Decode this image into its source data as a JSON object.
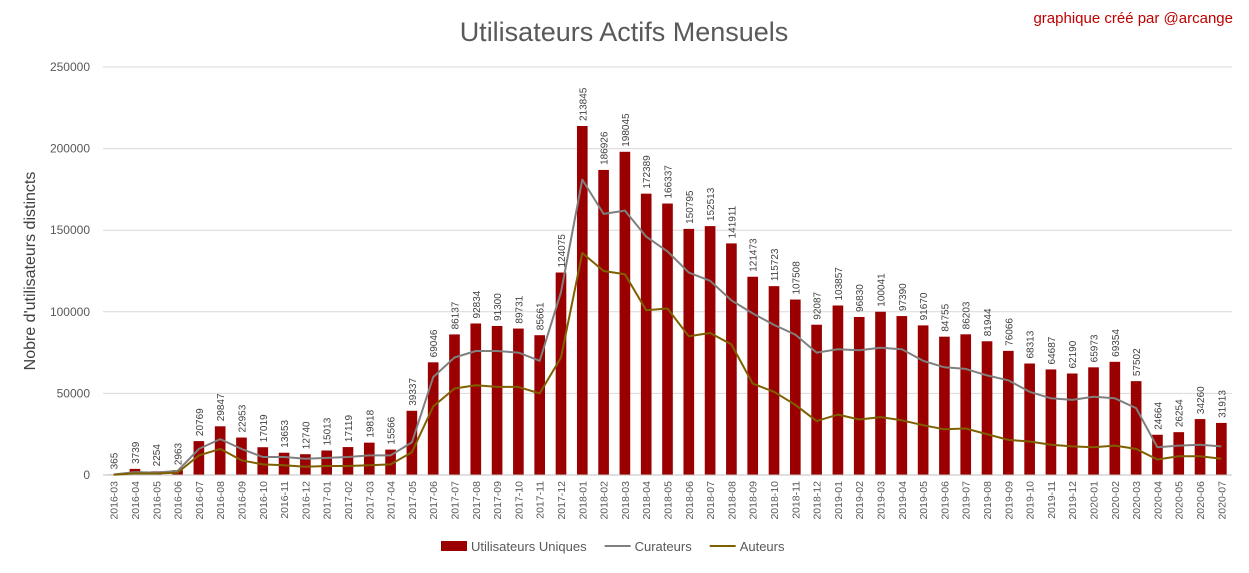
{
  "chart_data": {
    "type": "bar",
    "title": "Utilisateurs Actifs Mensuels",
    "credit": "graphique créé par  @arcange",
    "xlabel": "",
    "ylabel": "Nobre d'utilisateurs distincts",
    "ylim": [
      0,
      250000
    ],
    "yticks": [
      "0",
      "50000",
      "100000",
      "150000",
      "200000",
      "250000"
    ],
    "grid": true,
    "legend_position": "bottom",
    "categories": [
      "2016-03",
      "2016-04",
      "2016-05",
      "2016-06",
      "2016-07",
      "2016-08",
      "2016-09",
      "2016-10",
      "2016-11",
      "2016-12",
      "2017-01",
      "2017-02",
      "2017-03",
      "2017-04",
      "2017-05",
      "2017-06",
      "2017-07",
      "2017-08",
      "2017-09",
      "2017-10",
      "2017-11",
      "2017-12",
      "2018-01",
      "2018-02",
      "2018-03",
      "2018-04",
      "2018-05",
      "2018-06",
      "2018-07",
      "2018-08",
      "2018-09",
      "2018-10",
      "2018-11",
      "2018-12",
      "2019-01",
      "2019-02",
      "2019-03",
      "2019-04",
      "2019-05",
      "2019-06",
      "2019-07",
      "2019-08",
      "2019-09",
      "2019-10",
      "2019-11",
      "2019-12",
      "2020-01",
      "2020-02",
      "2020-03",
      "2020-04",
      "2020-05",
      "2020-06",
      "2020-07"
    ],
    "series": [
      {
        "name": "Utilisateurs Uniques",
        "kind": "bar",
        "color": "#9b0000",
        "values": [
          365,
          3739,
          2254,
          2963,
          20769,
          29847,
          22953,
          17019,
          13653,
          12740,
          15013,
          17119,
          19818,
          15566,
          39337,
          69046,
          86137,
          92834,
          91300,
          89731,
          85661,
          124075,
          213845,
          186926,
          198045,
          172389,
          166337,
          150795,
          152513,
          141911,
          121473,
          115723,
          107508,
          92087,
          103857,
          96830,
          100041,
          97390,
          91670,
          84755,
          86203,
          81944,
          76066,
          68313,
          64687,
          62190,
          65973,
          69354,
          57502,
          24664,
          26254,
          34260,
          31913
        ]
      },
      {
        "name": "Curateurs",
        "kind": "line",
        "color": "#7f7f7f",
        "values": [
          300,
          1800,
          1500,
          2500,
          16000,
          22000,
          16000,
          11000,
          11000,
          10000,
          10500,
          11000,
          12000,
          12000,
          20000,
          60000,
          72000,
          76000,
          76000,
          75000,
          70000,
          112000,
          181000,
          160000,
          162000,
          146000,
          137000,
          124000,
          119000,
          107000,
          99000,
          92000,
          86000,
          75000,
          77000,
          76500,
          78000,
          77000,
          70000,
          66000,
          65000,
          61000,
          58000,
          51000,
          47000,
          46000,
          48000,
          47000,
          41000,
          17000,
          18000,
          18500,
          17500
        ]
      },
      {
        "name": "Auteurs",
        "kind": "line",
        "color": "#7f6000",
        "values": [
          150,
          1000,
          900,
          1500,
          12000,
          16000,
          9000,
          6500,
          6000,
          5000,
          5500,
          5500,
          6000,
          6500,
          14000,
          42000,
          53000,
          55000,
          54000,
          54000,
          50000,
          72000,
          136000,
          125000,
          123000,
          101000,
          102000,
          85000,
          87000,
          80000,
          56000,
          51000,
          43000,
          33000,
          37000,
          34000,
          35500,
          33500,
          30500,
          28000,
          28500,
          25000,
          21500,
          20500,
          18500,
          17500,
          17000,
          18000,
          16000,
          9500,
          11500,
          11500,
          10000
        ]
      }
    ]
  }
}
